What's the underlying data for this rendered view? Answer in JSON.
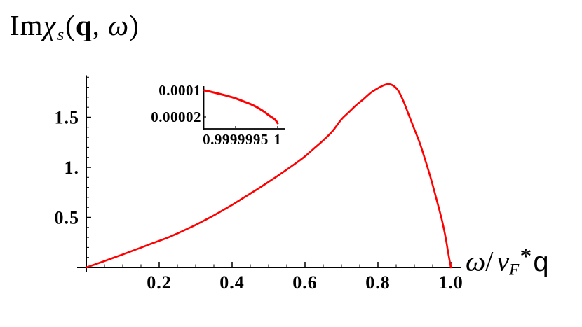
{
  "title": {
    "prefix": "Im",
    "chi": "χ",
    "sub": "s",
    "open": "(",
    "q": "q",
    "comma": ", ",
    "omega": "ω",
    "close": ")"
  },
  "x_axis_label": {
    "omega": "ω",
    "slash": "/",
    "v": "v",
    "sub": "F",
    "star": "*",
    "q": "q"
  },
  "colors": {
    "curve": "#ff0000",
    "axis": "#000000",
    "text": "#000000",
    "background": "#ffffff"
  },
  "chart_data": [
    {
      "type": "line",
      "role": "main",
      "title": "Imχs(q, ω)",
      "xlabel": "ω/vF*q",
      "ylabel": "Imχs(q, ω)",
      "grid": false,
      "legend": null,
      "xlim": [
        0,
        1.027
      ],
      "ylim": [
        0,
        1.92
      ],
      "x_major_ticks": [
        0.2,
        0.4,
        0.6,
        0.8,
        1.0
      ],
      "x_major_tick_labels": [
        "0.2",
        "0.4",
        "0.6",
        "0.8",
        "1.0"
      ],
      "x_minor_step": 0.05,
      "y_major_ticks": [
        0.5,
        1.0,
        1.5
      ],
      "y_major_tick_labels": [
        "0.5",
        "1.",
        "1.5"
      ],
      "y_minor_step": 0.1,
      "x": [
        0.0,
        0.025,
        0.05,
        0.075,
        0.1,
        0.125,
        0.15,
        0.175,
        0.2,
        0.225,
        0.25,
        0.275,
        0.3,
        0.325,
        0.35,
        0.375,
        0.4,
        0.425,
        0.45,
        0.475,
        0.5,
        0.525,
        0.55,
        0.575,
        0.6,
        0.625,
        0.65,
        0.675,
        0.7,
        0.72,
        0.74,
        0.76,
        0.78,
        0.795,
        0.81,
        0.825,
        0.84,
        0.855,
        0.87,
        0.885,
        0.9,
        0.915,
        0.93,
        0.945,
        0.96,
        0.975,
        0.985,
        0.993,
        1.0
      ],
      "y": [
        0.0,
        0.032,
        0.064,
        0.097,
        0.13,
        0.164,
        0.198,
        0.233,
        0.266,
        0.3,
        0.34,
        0.382,
        0.425,
        0.472,
        0.52,
        0.572,
        0.625,
        0.682,
        0.738,
        0.795,
        0.855,
        0.915,
        0.978,
        1.042,
        1.11,
        1.19,
        1.27,
        1.36,
        1.48,
        1.55,
        1.62,
        1.68,
        1.745,
        1.78,
        1.81,
        1.83,
        1.82,
        1.77,
        1.66,
        1.52,
        1.38,
        1.24,
        1.07,
        0.89,
        0.69,
        0.48,
        0.31,
        0.14,
        0.0
      ],
      "peak": {
        "x": 0.825,
        "y": 1.83
      }
    },
    {
      "type": "line",
      "role": "inset",
      "xlim": [
        0.9999991,
        1.0000001
      ],
      "ylim": [
        0,
        0.000105
      ],
      "x_ticks": [
        0.9999995,
        1
      ],
      "x_tick_labels": [
        "0.9999995",
        "1"
      ],
      "y_ticks": [
        0.0001,
        2e-05
      ],
      "y_tick_labels": [
        "0.0001",
        "0.00002"
      ],
      "x": [
        0.99999913,
        0.99999924,
        0.99999937,
        0.99999949,
        0.99999962,
        0.99999972,
        0.99999982,
        0.9999999,
        0.99999997,
        1.0
      ],
      "y": [
        0.0001,
        9.37e-05,
        8.53e-05,
        7.68e-05,
        6.42e-05,
        5.37e-05,
        3.89e-05,
        2.42e-05,
        1.16e-05,
        1e-06
      ]
    }
  ]
}
